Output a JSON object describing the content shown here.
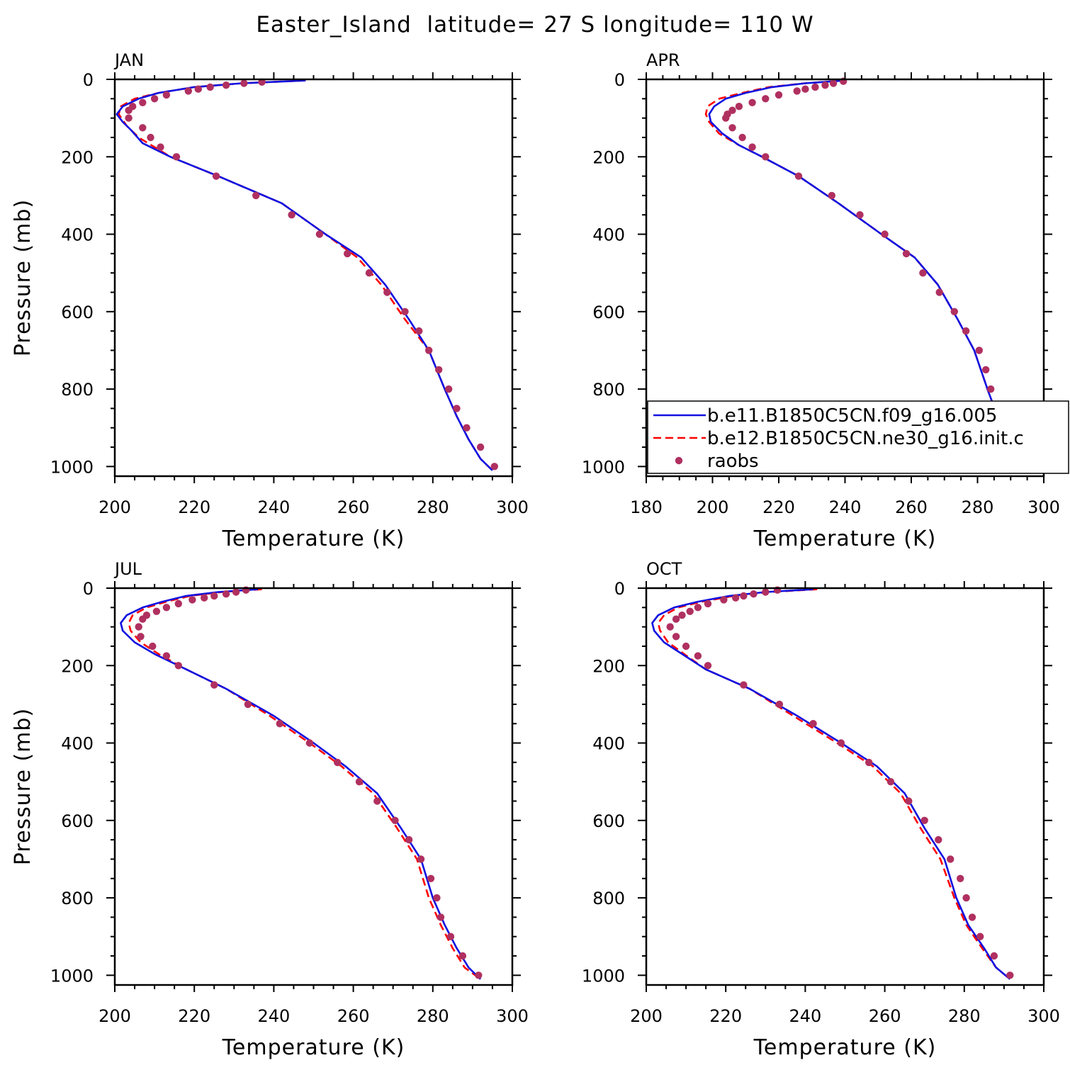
{
  "figure": {
    "title": "Easter_Island  latitude= 27 S longitude= 110 W"
  },
  "series_styles": [
    {
      "name": "b.e11.B1850C5CN.f09_g16.005",
      "color": "#1010e0",
      "dash": "solid",
      "marker": "line"
    },
    {
      "name": "b.e12.B1850C5CN.ne30_g16.init.c",
      "color": "#ff0000",
      "dash": "dashed",
      "marker": "line"
    },
    {
      "name": "raobs",
      "color": "#b03060",
      "marker": "dot"
    }
  ],
  "legend": {
    "panel": 1,
    "items": [
      "b.e11.B1850C5CN.f09_g16.005",
      "b.e12.B1850C5CN.ne30_g16.init.c",
      "raobs"
    ]
  },
  "chart_data": [
    {
      "type": "line",
      "label": "JAN",
      "xlabel": "Temperature (K)",
      "ylabel": "Pressure (mb)",
      "xlim": [
        200,
        300
      ],
      "ylim": [
        1025,
        0
      ],
      "xticks": [
        200,
        220,
        240,
        260,
        280,
        300
      ],
      "yticks": [
        0,
        200,
        400,
        600,
        800,
        1000
      ],
      "series": [
        {
          "name": "b.e11.B1850C5CN.f09_g16.005",
          "x": [
            248,
            232,
            220,
            211,
            206,
            202,
            200.5,
            202,
            204,
            207,
            214,
            226,
            242,
            253,
            262,
            268,
            274,
            279,
            283,
            286,
            289,
            292,
            295
          ],
          "y": [
            3,
            10,
            20,
            35,
            50,
            70,
            90,
            110,
            130,
            165,
            200,
            250,
            320,
            400,
            460,
            530,
            620,
            700,
            800,
            870,
            930,
            980,
            1010
          ]
        },
        {
          "name": "b.e12.B1850C5CN.ne30_g16.init.c",
          "x": [
            248,
            232,
            220,
            211,
            205,
            201.5,
            201,
            203,
            206,
            214,
            226,
            242,
            253,
            261,
            267,
            273,
            279,
            283,
            286,
            289,
            292,
            295
          ],
          "y": [
            3,
            10,
            20,
            35,
            50,
            70,
            90,
            120,
            150,
            200,
            250,
            320,
            400,
            460,
            530,
            620,
            700,
            800,
            870,
            930,
            980,
            1010
          ]
        },
        {
          "name": "raobs",
          "x": [
            237,
            232.5,
            228,
            224,
            221,
            218.5,
            213,
            210,
            207,
            204.5,
            203.5,
            203.5,
            207,
            209,
            211.5,
            215.5,
            225.5,
            235.5,
            244.5,
            251.5,
            258.5,
            264,
            268.5,
            273,
            276.5,
            279,
            281.5,
            284,
            286,
            288.5,
            292,
            295.5
          ],
          "y": [
            7,
            10,
            15,
            20,
            25,
            30,
            40,
            50,
            60,
            70,
            80,
            100,
            125,
            150,
            175,
            200,
            250,
            300,
            350,
            400,
            450,
            500,
            550,
            600,
            650,
            700,
            750,
            800,
            850,
            900,
            950,
            1000
          ]
        }
      ]
    },
    {
      "type": "line",
      "label": "APR",
      "xlabel": "Temperature (K)",
      "ylabel": "",
      "xlim": [
        180,
        300
      ],
      "ylim": [
        1025,
        0
      ],
      "xticks": [
        180,
        200,
        220,
        240,
        260,
        280,
        300
      ],
      "yticks": [
        0,
        200,
        400,
        600,
        800,
        1000
      ],
      "series": [
        {
          "name": "b.e11.B1850C5CN.f09_g16.005",
          "x": [
            240,
            228,
            218,
            210,
            204,
            200.5,
            199,
            199.5,
            203,
            208,
            215,
            226,
            238,
            251,
            261,
            268,
            274,
            279,
            283,
            286,
            290,
            293,
            295
          ],
          "y": [
            3,
            10,
            20,
            35,
            50,
            70,
            90,
            110,
            140,
            170,
            200,
            250,
            320,
            400,
            460,
            530,
            620,
            700,
            800,
            870,
            930,
            980,
            1000
          ]
        },
        {
          "name": "b.e12.B1850C5CN.ne30_g16.init.c",
          "x": [
            240,
            228,
            217,
            209,
            202,
            198.5,
            198,
            199,
            202,
            208,
            215,
            226,
            238,
            251,
            261,
            268,
            274,
            279,
            283,
            286,
            290,
            293,
            295
          ],
          "y": [
            3,
            10,
            20,
            35,
            50,
            70,
            90,
            110,
            140,
            170,
            200,
            250,
            320,
            400,
            460,
            530,
            620,
            700,
            800,
            870,
            930,
            980,
            1000
          ]
        },
        {
          "name": "raobs",
          "x": [
            239.5,
            236.5,
            234,
            231,
            228,
            225.5,
            220,
            216,
            212,
            208,
            206,
            204.5,
            204,
            206,
            209,
            212,
            216,
            226,
            236,
            244.5,
            252,
            258.5,
            263.5,
            268.5,
            273,
            276.5,
            280.5,
            282.5,
            284,
            285.5,
            287.5,
            291,
            295.5
          ],
          "y": [
            5,
            10,
            15,
            20,
            25,
            30,
            40,
            50,
            60,
            70,
            80,
            90,
            100,
            125,
            150,
            175,
            200,
            250,
            300,
            350,
            400,
            450,
            500,
            550,
            600,
            650,
            700,
            750,
            800,
            850,
            900,
            950,
            1000
          ]
        }
      ]
    },
    {
      "type": "line",
      "label": "JUL",
      "xlabel": "Temperature (K)",
      "ylabel": "Pressure (mb)",
      "xlim": [
        200,
        300
      ],
      "ylim": [
        1025,
        0
      ],
      "xticks": [
        200,
        220,
        240,
        260,
        280,
        300
      ],
      "yticks": [
        0,
        200,
        400,
        600,
        800,
        1000
      ],
      "series": [
        {
          "name": "b.e11.B1850C5CN.f09_g16.005",
          "x": [
            236,
            226,
            218,
            212,
            207,
            203,
            201.5,
            202,
            205,
            210,
            218,
            228,
            240,
            250,
            258,
            266,
            272,
            277,
            280,
            283,
            286,
            289,
            292
          ],
          "y": [
            3,
            10,
            20,
            35,
            50,
            70,
            90,
            110,
            140,
            170,
            210,
            260,
            330,
            400,
            460,
            530,
            620,
            700,
            800,
            870,
            930,
            980,
            1010
          ]
        },
        {
          "name": "b.e12.B1850C5CN.ne30_g16.init.c",
          "x": [
            237,
            227,
            219,
            213,
            208,
            204.5,
            203.5,
            204,
            206.5,
            211,
            218,
            228,
            239,
            249,
            257,
            265,
            271,
            276,
            279,
            282,
            285,
            288,
            292
          ],
          "y": [
            3,
            10,
            20,
            35,
            50,
            70,
            90,
            110,
            140,
            170,
            210,
            260,
            330,
            400,
            460,
            530,
            620,
            700,
            800,
            870,
            930,
            980,
            1010
          ]
        },
        {
          "name": "raobs",
          "x": [
            233,
            230.5,
            228,
            225,
            222.5,
            219.5,
            216,
            213,
            210.5,
            208,
            207,
            206,
            206.5,
            209.5,
            213,
            216,
            225,
            233.5,
            241.5,
            249,
            256,
            261.5,
            266,
            270.5,
            274,
            277,
            279.5,
            281,
            282,
            284.5,
            287.5,
            291.5
          ],
          "y": [
            5,
            10,
            15,
            20,
            25,
            30,
            40,
            50,
            60,
            70,
            80,
            100,
            125,
            150,
            175,
            200,
            250,
            300,
            350,
            400,
            450,
            500,
            550,
            600,
            650,
            700,
            750,
            800,
            850,
            900,
            950,
            1000
          ]
        }
      ]
    },
    {
      "type": "line",
      "label": "OCT",
      "xlabel": "Temperature (K)",
      "ylabel": "",
      "xlim": [
        200,
        300
      ],
      "ylim": [
        1025,
        0
      ],
      "xticks": [
        200,
        220,
        240,
        260,
        280,
        300
      ],
      "yticks": [
        0,
        200,
        400,
        600,
        800,
        1000
      ],
      "series": [
        {
          "name": "b.e11.B1850C5CN.f09_g16.005",
          "x": [
            242,
            230,
            221,
            213,
            207,
            203,
            201.5,
            202,
            204.5,
            209,
            215,
            226,
            238,
            249,
            258,
            265,
            270,
            275,
            278,
            281,
            285,
            288,
            291.5
          ],
          "y": [
            3,
            10,
            20,
            35,
            50,
            70,
            90,
            110,
            140,
            170,
            210,
            260,
            330,
            400,
            460,
            530,
            620,
            700,
            800,
            870,
            930,
            980,
            1010
          ]
        },
        {
          "name": "b.e12.B1850C5CN.ne30_g16.init.c",
          "x": [
            243,
            231,
            222,
            214,
            208,
            204.5,
            203,
            203.5,
            205.5,
            209.5,
            215,
            226,
            237,
            248,
            257,
            264,
            269,
            274,
            277.5,
            280.5,
            284.5,
            288,
            291.5
          ],
          "y": [
            3,
            10,
            20,
            35,
            50,
            70,
            90,
            110,
            140,
            170,
            210,
            260,
            330,
            400,
            460,
            530,
            620,
            700,
            800,
            870,
            930,
            980,
            1010
          ]
        },
        {
          "name": "raobs",
          "x": [
            233,
            230,
            227,
            224.5,
            222.5,
            219.5,
            215.5,
            213,
            211,
            209,
            207.5,
            206,
            207.5,
            210,
            213,
            215.5,
            224.5,
            233.5,
            242,
            249,
            256,
            261.5,
            266,
            270,
            273.5,
            276.5,
            279,
            280.5,
            282,
            284,
            287.5,
            291.5
          ],
          "y": [
            5,
            10,
            15,
            20,
            25,
            30,
            40,
            50,
            60,
            70,
            80,
            100,
            125,
            150,
            175,
            200,
            250,
            300,
            350,
            400,
            450,
            500,
            550,
            600,
            650,
            700,
            750,
            800,
            850,
            900,
            950,
            1000
          ]
        }
      ]
    }
  ]
}
